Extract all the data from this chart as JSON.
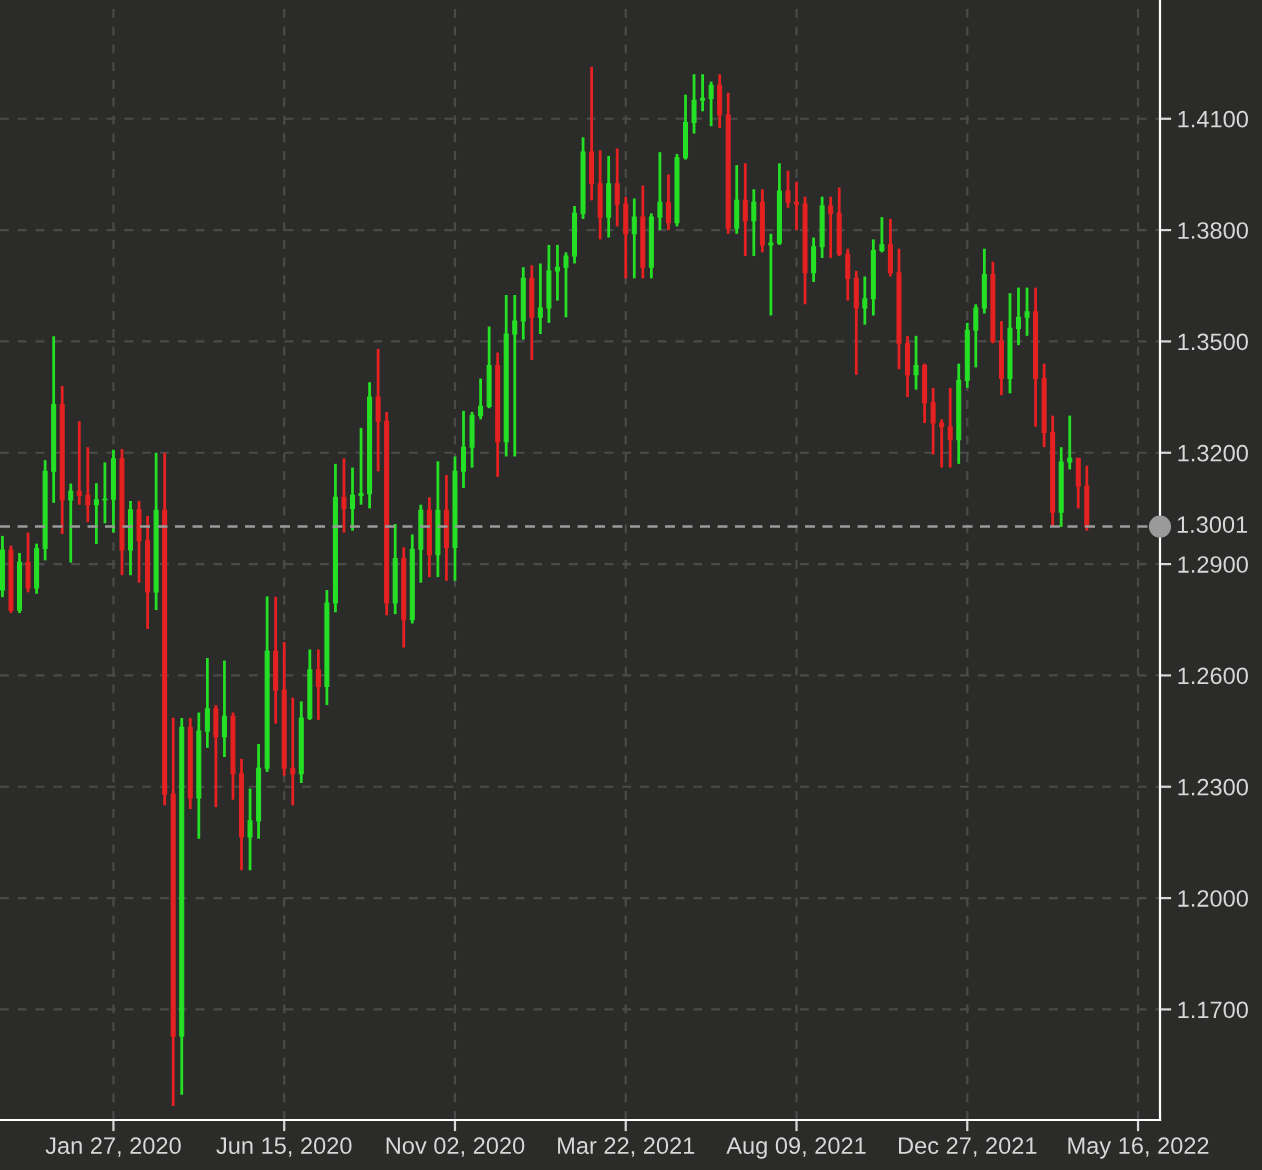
{
  "chart_data": {
    "type": "candlestick",
    "x": [
      "2019-10-28",
      "2019-11-04",
      "2019-11-11",
      "2019-11-18",
      "2019-11-25",
      "2019-12-02",
      "2019-12-09",
      "2019-12-16",
      "2019-12-23",
      "2019-12-30",
      "2020-01-06",
      "2020-01-13",
      "2020-01-20",
      "2020-01-27",
      "2020-02-03",
      "2020-02-10",
      "2020-02-17",
      "2020-02-24",
      "2020-03-02",
      "2020-03-09",
      "2020-03-16",
      "2020-03-23",
      "2020-03-30",
      "2020-04-06",
      "2020-04-13",
      "2020-04-20",
      "2020-04-27",
      "2020-05-04",
      "2020-05-11",
      "2020-05-18",
      "2020-05-25",
      "2020-06-01",
      "2020-06-08",
      "2020-06-15",
      "2020-06-22",
      "2020-06-29",
      "2020-07-06",
      "2020-07-13",
      "2020-07-20",
      "2020-07-27",
      "2020-08-03",
      "2020-08-10",
      "2020-08-17",
      "2020-08-24",
      "2020-08-31",
      "2020-09-07",
      "2020-09-14",
      "2020-09-21",
      "2020-09-28",
      "2020-10-05",
      "2020-10-12",
      "2020-10-19",
      "2020-10-26",
      "2020-11-02",
      "2020-11-09",
      "2020-11-16",
      "2020-11-23",
      "2020-11-30",
      "2020-12-07",
      "2020-12-14",
      "2020-12-21",
      "2020-12-28",
      "2021-01-04",
      "2021-01-11",
      "2021-01-18",
      "2021-01-25",
      "2021-02-01",
      "2021-02-08",
      "2021-02-15",
      "2021-02-22",
      "2021-03-01",
      "2021-03-08",
      "2021-03-15",
      "2021-03-22",
      "2021-03-29",
      "2021-04-05",
      "2021-04-12",
      "2021-04-19",
      "2021-04-26",
      "2021-05-03",
      "2021-05-10",
      "2021-05-17",
      "2021-05-24",
      "2021-05-31",
      "2021-06-07",
      "2021-06-14",
      "2021-06-21",
      "2021-06-28",
      "2021-07-05",
      "2021-07-12",
      "2021-07-19",
      "2021-07-26",
      "2021-08-02",
      "2021-08-09",
      "2021-08-16",
      "2021-08-23",
      "2021-08-30",
      "2021-09-06",
      "2021-09-13",
      "2021-09-20",
      "2021-09-27",
      "2021-10-04",
      "2021-10-11",
      "2021-10-18",
      "2021-10-25",
      "2021-11-01",
      "2021-11-08",
      "2021-11-15",
      "2021-11-22",
      "2021-11-29",
      "2021-12-06",
      "2021-12-13",
      "2021-12-20",
      "2021-12-27",
      "2022-01-03",
      "2022-01-10",
      "2022-01-17",
      "2022-01-24",
      "2022-01-31",
      "2022-02-07",
      "2022-02-14",
      "2022-02-21",
      "2022-02-28",
      "2022-03-07",
      "2022-03-14",
      "2022-03-21",
      "2022-03-28",
      "2022-04-04"
    ],
    "ohlc": [
      [
        1.283,
        1.2976,
        1.2811,
        1.2938
      ],
      [
        1.2938,
        1.295,
        1.2768,
        1.2776
      ],
      [
        1.2776,
        1.293,
        1.2768,
        1.2905
      ],
      [
        1.2905,
        1.2985,
        1.2824,
        1.2836
      ],
      [
        1.2836,
        1.2955,
        1.282,
        1.2942
      ],
      [
        1.2942,
        1.318,
        1.291,
        1.315
      ],
      [
        1.315,
        1.3514,
        1.3065,
        1.333
      ],
      [
        1.333,
        1.338,
        1.2981,
        1.3073
      ],
      [
        1.3073,
        1.3117,
        1.2904,
        1.3096
      ],
      [
        1.3096,
        1.3285,
        1.306,
        1.3085
      ],
      [
        1.3085,
        1.3215,
        1.3013,
        1.306
      ],
      [
        1.306,
        1.3118,
        1.2954,
        1.3073
      ],
      [
        1.3073,
        1.3174,
        1.301,
        1.3075
      ],
      [
        1.3075,
        1.3208,
        1.2985,
        1.3184
      ],
      [
        1.3184,
        1.321,
        1.287,
        1.2938
      ],
      [
        1.2938,
        1.307,
        1.287,
        1.3046
      ],
      [
        1.3046,
        1.307,
        1.285,
        1.2963
      ],
      [
        1.2963,
        1.303,
        1.2725,
        1.2825
      ],
      [
        1.2825,
        1.32,
        1.2776,
        1.3045
      ],
      [
        1.3045,
        1.32,
        1.225,
        1.228
      ],
      [
        1.228,
        1.2486,
        1.144,
        1.1628
      ],
      [
        1.1628,
        1.2485,
        1.147,
        1.246
      ],
      [
        1.246,
        1.2485,
        1.224,
        1.227
      ],
      [
        1.227,
        1.25,
        1.216,
        1.245
      ],
      [
        1.245,
        1.2647,
        1.2405,
        1.251
      ],
      [
        1.251,
        1.252,
        1.2245,
        1.2435
      ],
      [
        1.2435,
        1.264,
        1.238,
        1.249
      ],
      [
        1.249,
        1.25,
        1.2265,
        1.2335
      ],
      [
        1.2335,
        1.2375,
        1.2075,
        1.2165
      ],
      [
        1.2165,
        1.2295,
        1.2075,
        1.2208
      ],
      [
        1.2208,
        1.2415,
        1.216,
        1.235
      ],
      [
        1.235,
        1.2813,
        1.234,
        1.2665
      ],
      [
        1.2665,
        1.2812,
        1.247,
        1.256
      ],
      [
        1.256,
        1.269,
        1.233,
        1.235
      ],
      [
        1.235,
        1.254,
        1.225,
        1.2335
      ],
      [
        1.2335,
        1.253,
        1.231,
        1.2485
      ],
      [
        1.2485,
        1.267,
        1.248,
        1.2615
      ],
      [
        1.2615,
        1.267,
        1.248,
        1.257
      ],
      [
        1.257,
        1.283,
        1.252,
        1.2795
      ],
      [
        1.2795,
        1.317,
        1.277,
        1.308
      ],
      [
        1.308,
        1.3185,
        1.2985,
        1.305
      ],
      [
        1.305,
        1.316,
        1.299,
        1.3085
      ],
      [
        1.3085,
        1.3267,
        1.306,
        1.309
      ],
      [
        1.309,
        1.339,
        1.305,
        1.335
      ],
      [
        1.335,
        1.348,
        1.315,
        1.3285
      ],
      [
        1.3285,
        1.331,
        1.2762,
        1.2795
      ],
      [
        1.2795,
        1.3008,
        1.2765,
        1.2915
      ],
      [
        1.2915,
        1.2945,
        1.2675,
        1.275
      ],
      [
        1.275,
        1.298,
        1.274,
        1.294
      ],
      [
        1.294,
        1.306,
        1.285,
        1.3045
      ],
      [
        1.3045,
        1.308,
        1.2865,
        1.2925
      ],
      [
        1.2925,
        1.3177,
        1.2865,
        1.3045
      ],
      [
        1.3045,
        1.314,
        1.2855,
        1.2945
      ],
      [
        1.2945,
        1.319,
        1.2855,
        1.315
      ],
      [
        1.315,
        1.3313,
        1.3105,
        1.3215
      ],
      [
        1.3215,
        1.331,
        1.316,
        1.33
      ],
      [
        1.33,
        1.34,
        1.329,
        1.3325
      ],
      [
        1.3325,
        1.354,
        1.332,
        1.3435
      ],
      [
        1.3435,
        1.347,
        1.3135,
        1.323
      ],
      [
        1.323,
        1.3625,
        1.319,
        1.352
      ],
      [
        1.352,
        1.3625,
        1.319,
        1.3555
      ],
      [
        1.3555,
        1.37,
        1.3505,
        1.367
      ],
      [
        1.367,
        1.3705,
        1.345,
        1.3565
      ],
      [
        1.3565,
        1.371,
        1.352,
        1.359
      ],
      [
        1.359,
        1.376,
        1.355,
        1.369
      ],
      [
        1.369,
        1.376,
        1.361,
        1.37
      ],
      [
        1.37,
        1.374,
        1.3565,
        1.373
      ],
      [
        1.373,
        1.3865,
        1.371,
        1.3845
      ],
      [
        1.3845,
        1.405,
        1.383,
        1.401
      ],
      [
        1.401,
        1.424,
        1.388,
        1.3925
      ],
      [
        1.3925,
        1.4015,
        1.3775,
        1.3835
      ],
      [
        1.3835,
        1.4,
        1.378,
        1.3925
      ],
      [
        1.3925,
        1.402,
        1.381,
        1.387
      ],
      [
        1.387,
        1.389,
        1.367,
        1.379
      ],
      [
        1.379,
        1.3885,
        1.367,
        1.3835
      ],
      [
        1.3835,
        1.392,
        1.367,
        1.37
      ],
      [
        1.37,
        1.3845,
        1.367,
        1.3835
      ],
      [
        1.3835,
        1.401,
        1.38,
        1.3875
      ],
      [
        1.3875,
        1.395,
        1.38,
        1.382
      ],
      [
        1.382,
        1.4005,
        1.381,
        1.3995
      ],
      [
        1.3995,
        1.4165,
        1.399,
        1.409
      ],
      [
        1.409,
        1.422,
        1.406,
        1.415
      ],
      [
        1.415,
        1.422,
        1.412,
        1.4155
      ],
      [
        1.4155,
        1.42,
        1.408,
        1.419
      ],
      [
        1.419,
        1.422,
        1.4075,
        1.411
      ],
      [
        1.411,
        1.417,
        1.379,
        1.3805
      ],
      [
        1.3805,
        1.3975,
        1.379,
        1.388
      ],
      [
        1.388,
        1.398,
        1.373,
        1.3825
      ],
      [
        1.3825,
        1.391,
        1.373,
        1.3875
      ],
      [
        1.3875,
        1.391,
        1.374,
        1.376
      ],
      [
        1.376,
        1.379,
        1.357,
        1.3765
      ],
      [
        1.3765,
        1.398,
        1.376,
        1.3905
      ],
      [
        1.3905,
        1.396,
        1.386,
        1.3875
      ],
      [
        1.3875,
        1.393,
        1.38,
        1.387
      ],
      [
        1.387,
        1.389,
        1.36,
        1.3685
      ],
      [
        1.3685,
        1.378,
        1.366,
        1.3755
      ],
      [
        1.3755,
        1.389,
        1.3725,
        1.3865
      ],
      [
        1.3865,
        1.389,
        1.3725,
        1.3845
      ],
      [
        1.3845,
        1.3915,
        1.373,
        1.3735
      ],
      [
        1.3735,
        1.375,
        1.361,
        1.367
      ],
      [
        1.367,
        1.369,
        1.341,
        1.359
      ],
      [
        1.359,
        1.3675,
        1.3545,
        1.3615
      ],
      [
        1.3615,
        1.3775,
        1.357,
        1.3745
      ],
      [
        1.3745,
        1.3835,
        1.374,
        1.376
      ],
      [
        1.376,
        1.383,
        1.3675,
        1.3685
      ],
      [
        1.3685,
        1.375,
        1.3425,
        1.3495
      ],
      [
        1.3495,
        1.3515,
        1.335,
        1.341
      ],
      [
        1.341,
        1.3515,
        1.337,
        1.3435
      ],
      [
        1.3435,
        1.344,
        1.328,
        1.3335
      ],
      [
        1.3335,
        1.3375,
        1.3195,
        1.328
      ],
      [
        1.328,
        1.329,
        1.316,
        1.327
      ],
      [
        1.327,
        1.3375,
        1.316,
        1.3235
      ],
      [
        1.3235,
        1.344,
        1.317,
        1.3395
      ],
      [
        1.3395,
        1.355,
        1.3375,
        1.353
      ],
      [
        1.353,
        1.36,
        1.343,
        1.359
      ],
      [
        1.359,
        1.375,
        1.3575,
        1.368
      ],
      [
        1.368,
        1.3715,
        1.3495,
        1.35
      ],
      [
        1.35,
        1.3555,
        1.3355,
        1.34
      ],
      [
        1.34,
        1.363,
        1.336,
        1.3535
      ],
      [
        1.3535,
        1.3645,
        1.349,
        1.3565
      ],
      [
        1.3565,
        1.3645,
        1.3515,
        1.358
      ],
      [
        1.358,
        1.3645,
        1.327,
        1.34
      ],
      [
        1.34,
        1.344,
        1.3215,
        1.3255
      ],
      [
        1.3255,
        1.33,
        1.3,
        1.304
      ],
      [
        1.304,
        1.3215,
        1.3,
        1.3175
      ],
      [
        1.3175,
        1.33,
        1.3155,
        1.3185
      ],
      [
        1.3185,
        1.3185,
        1.305,
        1.311
      ],
      [
        1.311,
        1.3165,
        1.299,
        1.3001
      ]
    ],
    "colors": [
      "#25e025",
      "#e52121",
      "#25e025",
      "#e52121",
      "#25e025",
      "#25e025",
      "#25e025",
      "#e52121",
      "#25e025",
      "#e52121",
      "#e52121",
      "#25e025",
      "#25e025",
      "#25e025",
      "#e52121",
      "#25e025",
      "#e52121",
      "#e52121",
      "#25e025",
      "#e52121",
      "#e52121",
      "#25e025",
      "#e52121",
      "#25e025",
      "#25e025",
      "#e52121",
      "#25e025",
      "#e52121",
      "#e52121",
      "#25e025",
      "#25e025",
      "#25e025",
      "#e52121",
      "#e52121",
      "#e52121",
      "#25e025",
      "#25e025",
      "#e52121",
      "#25e025",
      "#25e025",
      "#e52121",
      "#25e025",
      "#25e025",
      "#25e025",
      "#e52121",
      "#e52121",
      "#25e025",
      "#e52121",
      "#25e025",
      "#25e025",
      "#e52121",
      "#25e025",
      "#e52121",
      "#25e025",
      "#25e025",
      "#25e025",
      "#25e025",
      "#25e025",
      "#e52121",
      "#25e025",
      "#25e025",
      "#25e025",
      "#e52121",
      "#25e025",
      "#25e025",
      "#25e025",
      "#25e025",
      "#25e025",
      "#25e025",
      "#e52121",
      "#e52121",
      "#25e025",
      "#e52121",
      "#e52121",
      "#25e025",
      "#e52121",
      "#25e025",
      "#25e025",
      "#e52121",
      "#25e025",
      "#25e025",
      "#25e025",
      "#25e025",
      "#25e025",
      "#e52121",
      "#e52121",
      "#25e025",
      "#e52121",
      "#25e025",
      "#e52121",
      "#25e025",
      "#25e025",
      "#e52121",
      "#e52121",
      "#e52121",
      "#25e025",
      "#25e025",
      "#e52121",
      "#e52121",
      "#e52121",
      "#e52121",
      "#25e025",
      "#25e025",
      "#25e025",
      "#e52121",
      "#e52121",
      "#e52121",
      "#25e025",
      "#e52121",
      "#e52121",
      "#e52121",
      "#e52121",
      "#25e025",
      "#25e025",
      "#25e025",
      "#25e025",
      "#e52121",
      "#e52121",
      "#25e025",
      "#25e025",
      "#25e025",
      "#e52121",
      "#e52121",
      "#e52121",
      "#25e025",
      "#25e025",
      "#e52121",
      "#e52121"
    ],
    "xlim": [
      "2019-10-26",
      "2022-06-03"
    ],
    "xticks": [
      {
        "value": "2020-01-27",
        "label": "Jan 27, 2020"
      },
      {
        "value": "2020-06-15",
        "label": "Jun 15, 2020"
      },
      {
        "value": "2020-11-02",
        "label": "Nov 02, 2020"
      },
      {
        "value": "2021-03-22",
        "label": "Mar 22, 2021"
      },
      {
        "value": "2021-08-09",
        "label": "Aug 09, 2021"
      },
      {
        "value": "2021-12-27",
        "label": "Dec 27, 2021"
      },
      {
        "value": "2022-05-16",
        "label": "May 16, 2022"
      }
    ],
    "ylim": [
      1.1402,
      1.442
    ],
    "yticks": [
      {
        "value": 1.17,
        "label": "1.1700"
      },
      {
        "value": 1.2,
        "label": "1.2000"
      },
      {
        "value": 1.23,
        "label": "1.2300"
      },
      {
        "value": 1.26,
        "label": "1.2600"
      },
      {
        "value": 1.29,
        "label": "1.2900"
      },
      {
        "value": 1.32,
        "label": "1.3200"
      },
      {
        "value": 1.35,
        "label": "1.3500"
      },
      {
        "value": 1.38,
        "label": "1.3800"
      },
      {
        "value": 1.41,
        "label": "1.4100"
      }
    ],
    "ref_lines": [
      {
        "axis": "y",
        "value": 1.3001,
        "label": "1.3001",
        "color": "#9a9a9a",
        "line_style": "dashed"
      }
    ],
    "grid": true
  }
}
